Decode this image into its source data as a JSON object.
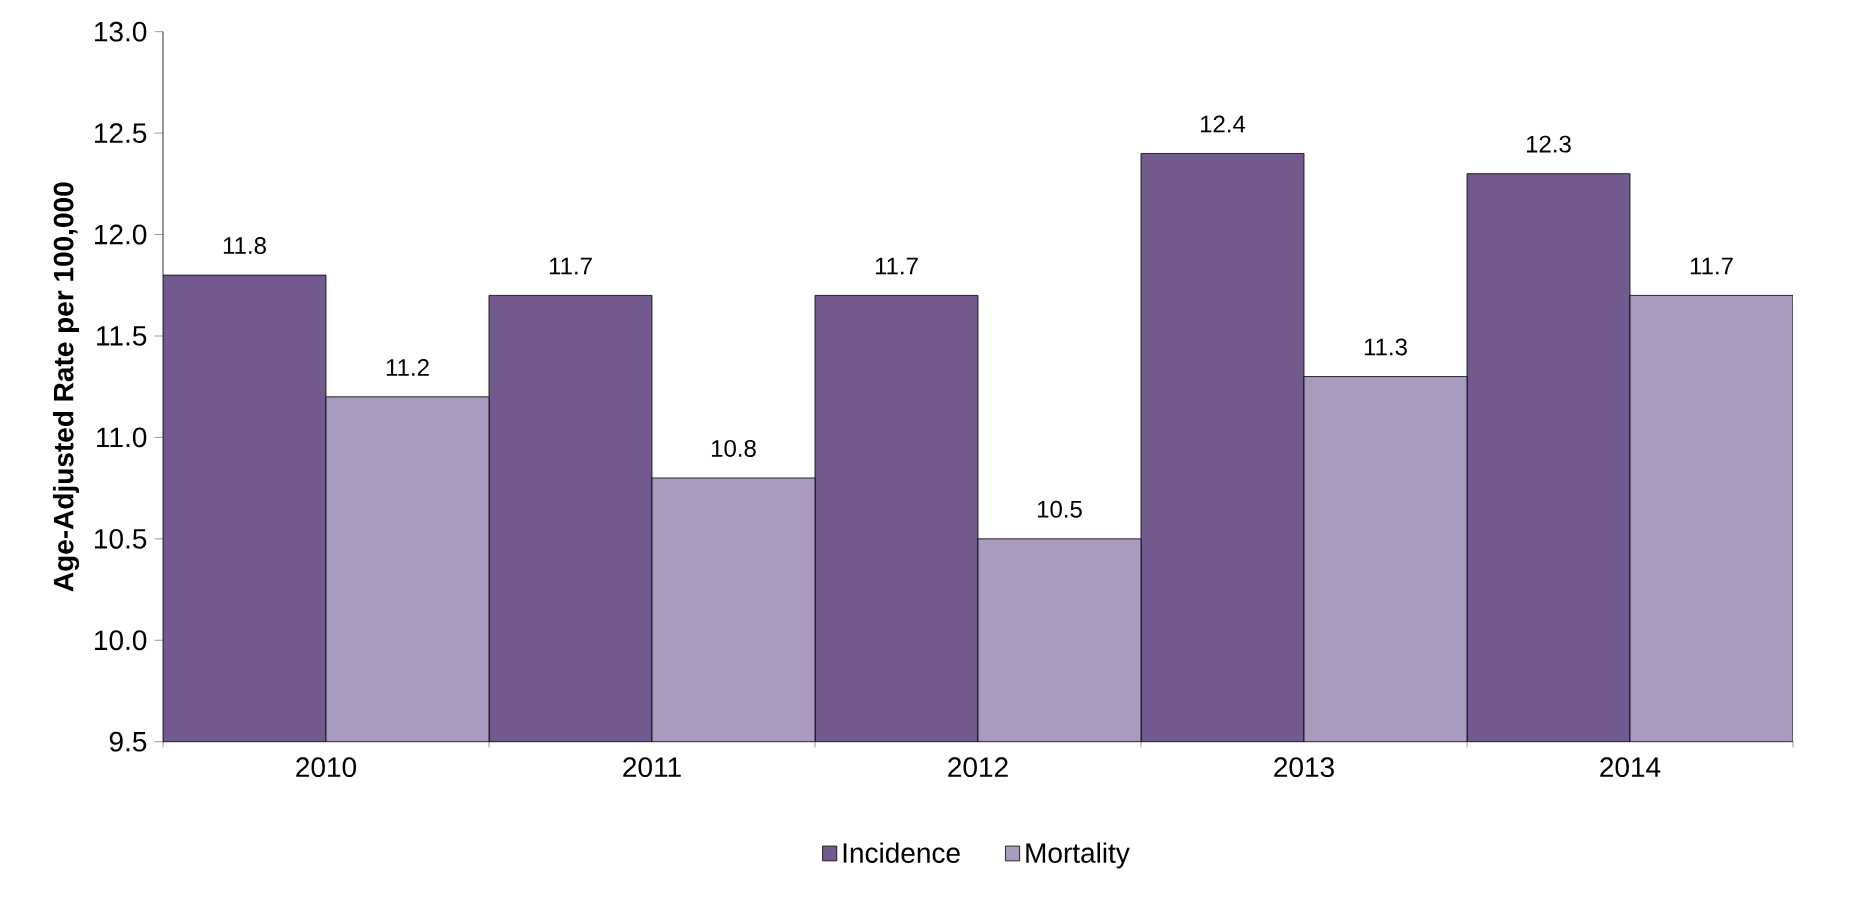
{
  "chart_data": {
    "type": "bar",
    "ylabel": "Age-Adjusted Rate per 100,000",
    "categories": [
      "2010",
      "2011",
      "2012",
      "2013",
      "2014"
    ],
    "series": [
      {
        "name": "Incidence",
        "color": "#725a8f",
        "values": [
          11.8,
          11.7,
          11.7,
          12.4,
          12.3
        ]
      },
      {
        "name": "Mortality",
        "color": "#a99bbe",
        "values": [
          11.2,
          10.8,
          10.5,
          11.3,
          11.7
        ]
      }
    ],
    "ylim": [
      9.5,
      13.0
    ],
    "yticks": [
      {
        "value": 9.5,
        "label": "9.5"
      },
      {
        "value": 10.0,
        "label": "10.0"
      },
      {
        "value": 10.5,
        "label": "10.5"
      },
      {
        "value": 11.0,
        "label": "11.0"
      },
      {
        "value": 11.5,
        "label": "11.5"
      },
      {
        "value": 12.0,
        "label": "12.0"
      },
      {
        "value": 12.5,
        "label": "12.5"
      },
      {
        "value": 13.0,
        "label": "13.0"
      }
    ],
    "data_labels": true,
    "legend": "bottom",
    "grid": false
  }
}
